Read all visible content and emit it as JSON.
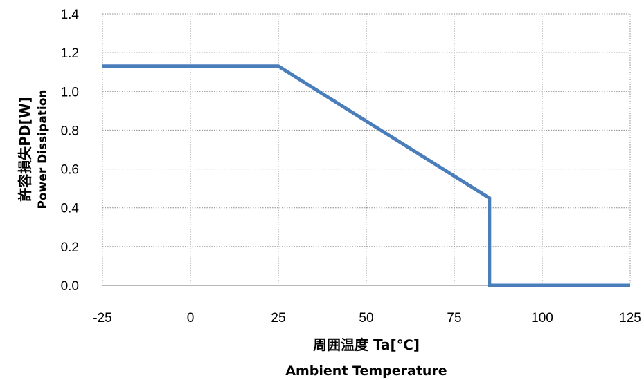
{
  "chart_data": {
    "type": "line",
    "x_axis": {
      "label_jp": "周囲温度 Ta[℃]",
      "label_en": "Ambient Temperature",
      "range": [
        -25,
        125
      ],
      "ticks": [
        -25,
        0,
        25,
        50,
        75,
        100,
        125
      ]
    },
    "y_axis": {
      "label_jp": "許容損失PD[W]",
      "label_en": "Power Dissipation",
      "range": [
        0,
        1.4
      ],
      "ticks": [
        "0.0",
        "0.2",
        "0.4",
        "0.6",
        "0.8",
        "1.0",
        "1.2",
        "1.4"
      ]
    },
    "grid": true,
    "grid_style": "dotted",
    "series": [
      {
        "color": "#4a7ebb",
        "points": [
          {
            "x": -25,
            "y": 1.13
          },
          {
            "x": 25,
            "y": 1.13
          },
          {
            "x": 85,
            "y": 0.45
          },
          {
            "x": 85,
            "y": 0.0
          },
          {
            "x": 125,
            "y": 0.0
          }
        ]
      }
    ]
  }
}
